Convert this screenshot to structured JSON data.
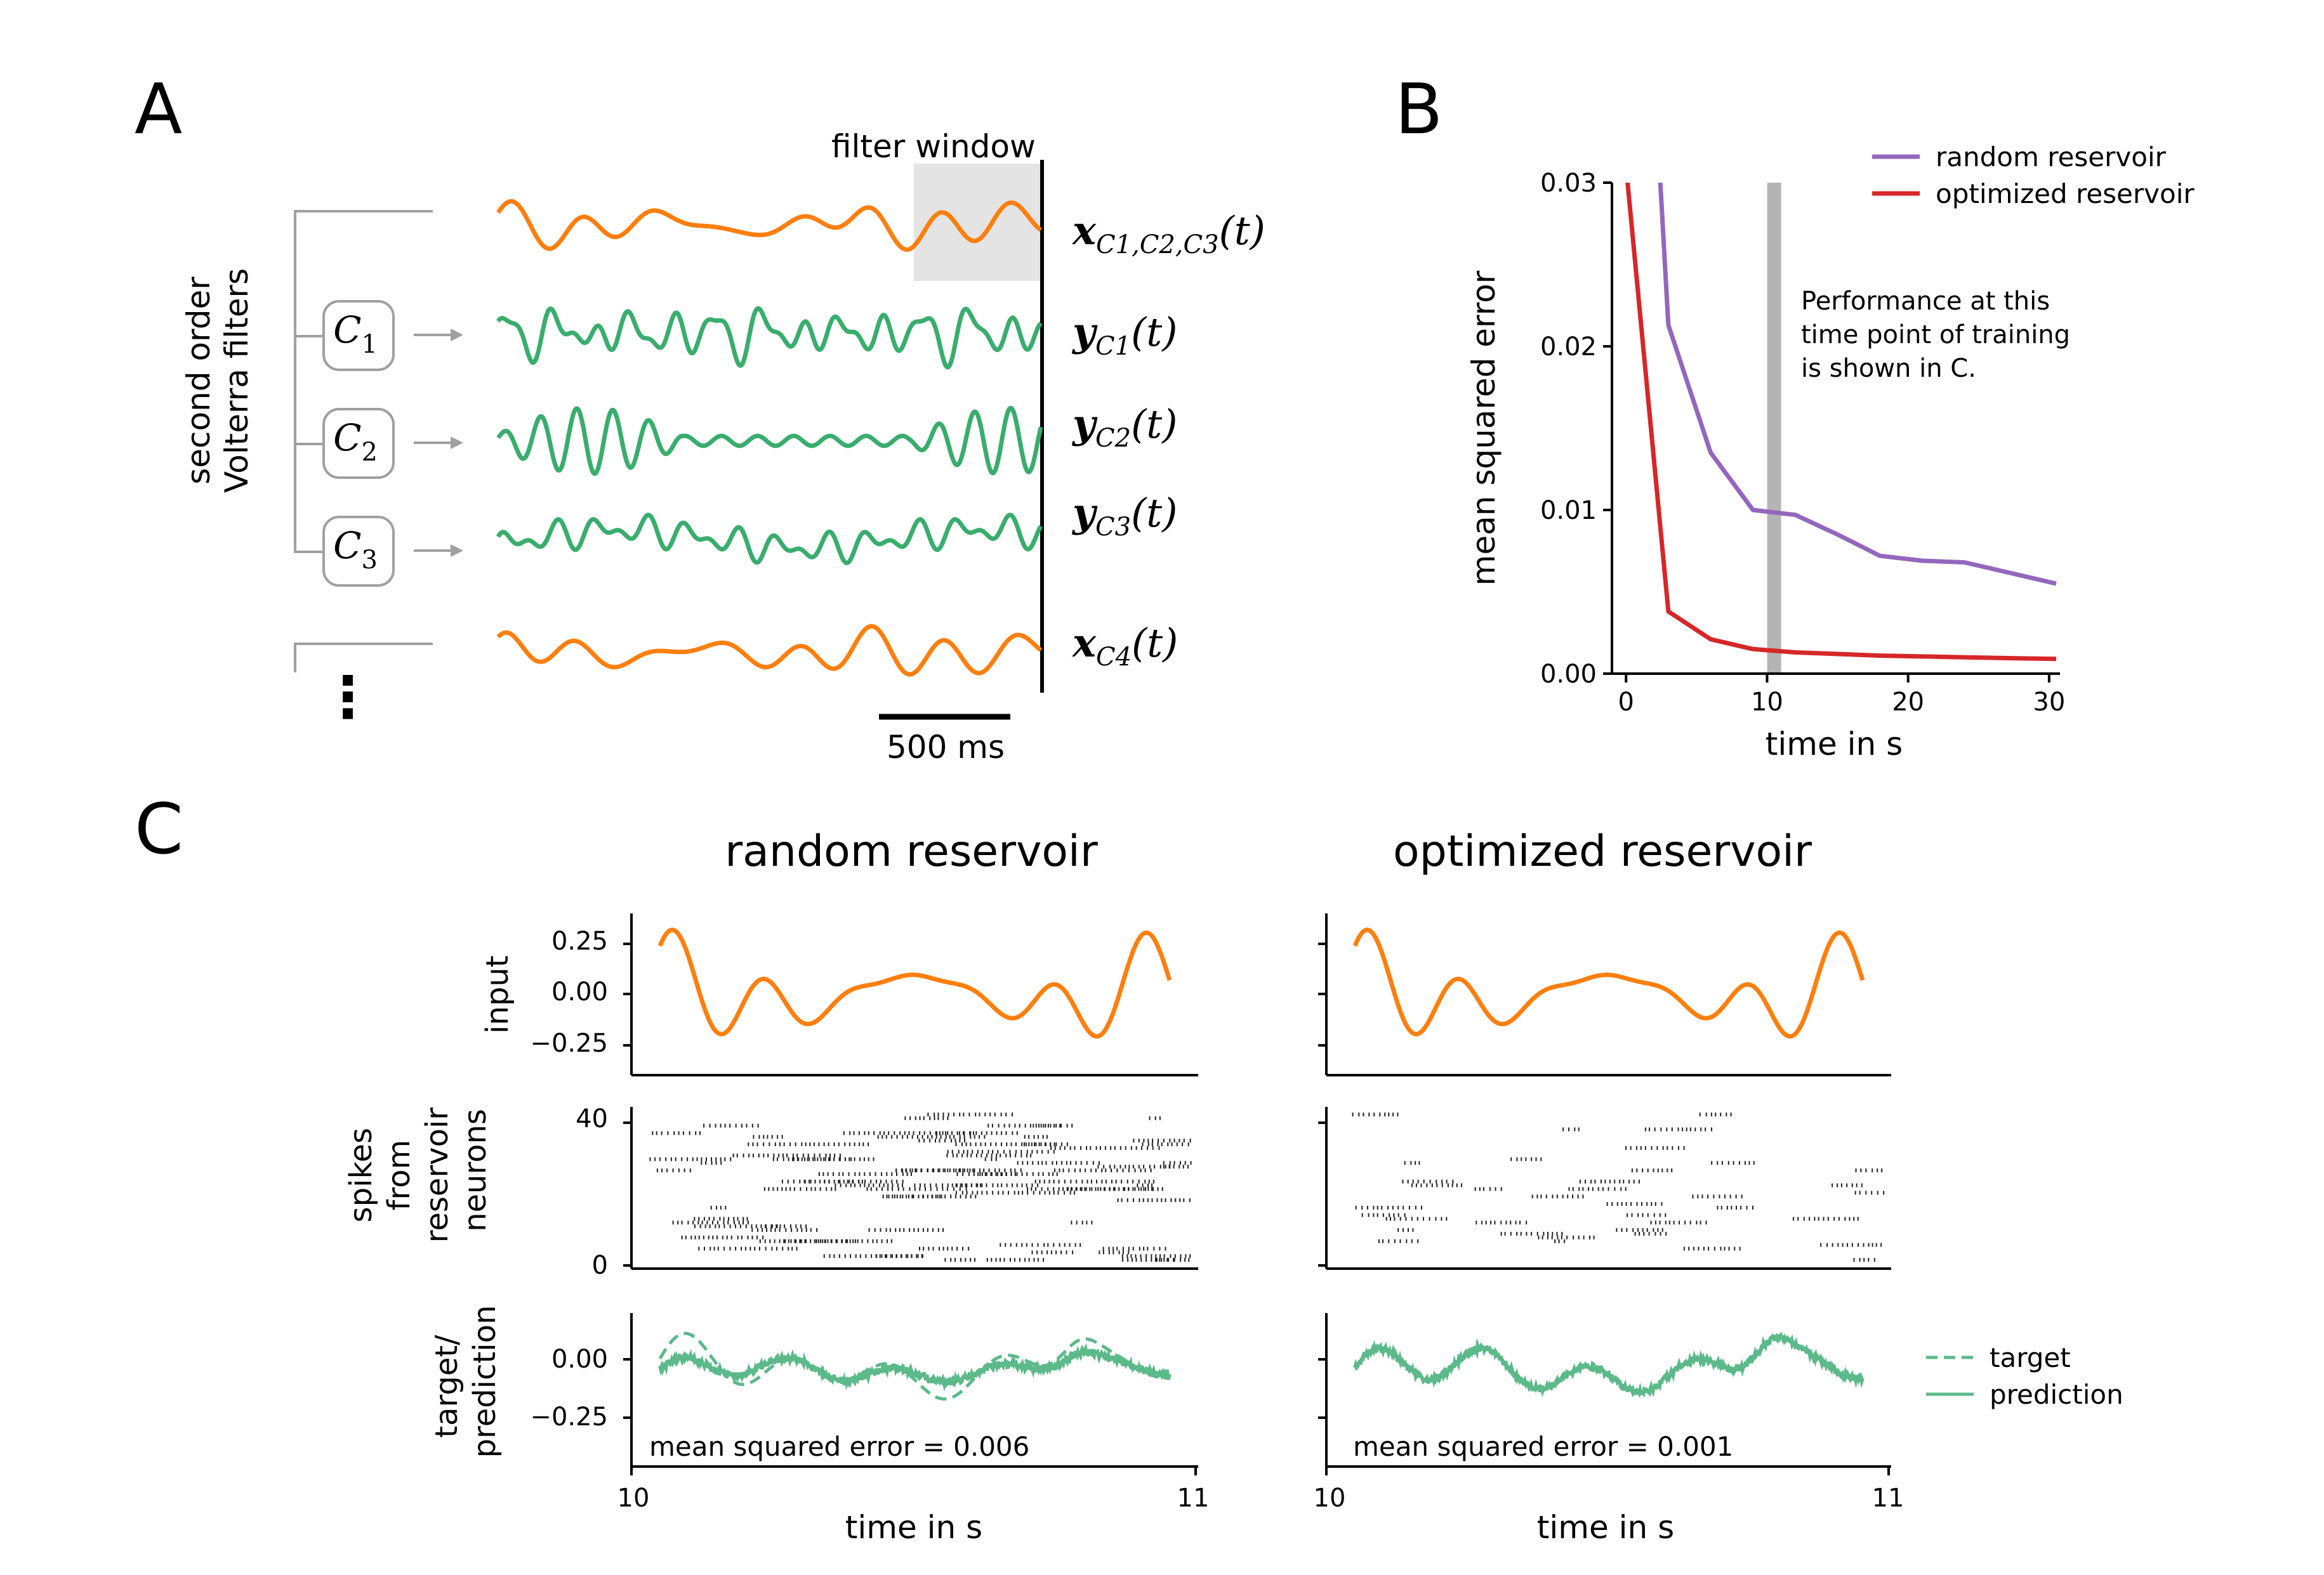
{
  "panel_labels": {
    "a": "A",
    "b": "B",
    "c": "C"
  },
  "colors": {
    "orange": "#ff7f0e",
    "green": "#3aad6e",
    "purple": "#9467bd",
    "red": "#d62728",
    "gray": "#a0a0a0",
    "black": "#000000"
  },
  "panel_a": {
    "filter_window_label": "filter window",
    "volterra_label_line1": "second order",
    "volterra_label_line2": "Volterra filters",
    "filters": [
      {
        "name": "C",
        "sub": "1"
      },
      {
        "name": "C",
        "sub": "2"
      },
      {
        "name": "C",
        "sub": "3"
      }
    ],
    "ellipsis": "⋮",
    "scalebar_label": "500 ms",
    "signal_labels": [
      {
        "var": "x",
        "sub": "C1,C2,C3",
        "arg": "(t)"
      },
      {
        "var": "y",
        "sub": "C1",
        "arg": "(t)"
      },
      {
        "var": "y",
        "sub": "C2",
        "arg": "(t)"
      },
      {
        "var": "y",
        "sub": "C3",
        "arg": "(t)"
      },
      {
        "var": "x",
        "sub": "C4",
        "arg": "(t)"
      }
    ]
  },
  "chart_data": [
    {
      "id": "B",
      "type": "line",
      "title": "",
      "xlabel": "time in s",
      "ylabel": "mean squared error",
      "xlim": [
        -1,
        30.5
      ],
      "ylim": [
        0,
        0.03
      ],
      "xticks": [
        0,
        10,
        20,
        30
      ],
      "yticks": [
        0.0,
        0.01,
        0.02,
        0.03
      ],
      "ytick_labels": [
        "0.00",
        "0.01",
        "0.02",
        "0.03"
      ],
      "legend_position": "top-right",
      "series": [
        {
          "name": "random reservoir",
          "color": "#9467bd",
          "x": [
            2.3,
            3,
            6,
            9,
            12,
            15,
            18,
            21,
            24,
            27,
            30.5
          ],
          "y": [
            0.032,
            0.0213,
            0.0135,
            0.01,
            0.0097,
            0.0085,
            0.0072,
            0.0069,
            0.0068,
            0.0062,
            0.0055
          ]
        },
        {
          "name": "optimized reservoir",
          "color": "#d62728",
          "x": [
            0,
            3,
            6,
            9,
            12,
            15,
            18,
            21,
            24,
            27,
            30.5
          ],
          "y": [
            0.031,
            0.0038,
            0.0021,
            0.0015,
            0.0013,
            0.0012,
            0.0011,
            0.00105,
            0.001,
            0.00095,
            0.0009
          ]
        }
      ],
      "highlight_x": 10.5,
      "annotation": [
        "Performance at this",
        "time point of training",
        "is shown in C."
      ]
    }
  ],
  "panel_c": {
    "col_titles": [
      "random reservoir",
      "optimized reservoir"
    ],
    "input_ylabel": "input",
    "input_yticks": [
      "0.25",
      "0.00",
      "−0.25"
    ],
    "spikes_ylabel": [
      "spikes",
      "from",
      "reservoir",
      "neurons"
    ],
    "spikes_yticks": [
      "40",
      "0"
    ],
    "target_ylabel": [
      "target/",
      "prediction"
    ],
    "target_yticks": [
      "0.00",
      "−0.25"
    ],
    "mse_labels": [
      "mean squared error = 0.006",
      "mean squared error = 0.001"
    ],
    "xlabel": "time in s",
    "xtick_labels": [
      "10",
      "11"
    ],
    "legend": {
      "target": "target",
      "prediction": "prediction"
    }
  }
}
